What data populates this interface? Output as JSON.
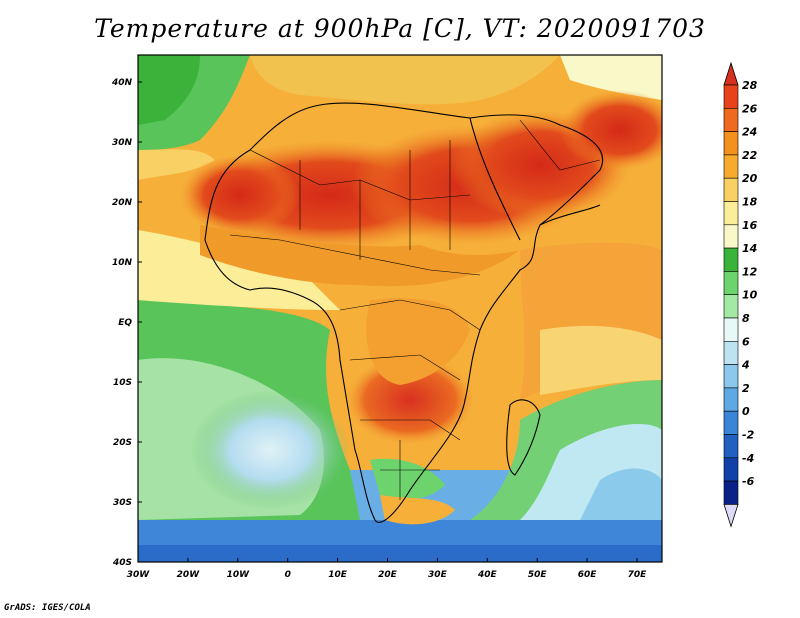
{
  "title": "Temperature at 900hPa [C], VT: 2020091703",
  "credit": "GrADS: IGES/COLA",
  "map": {
    "lat_labels": [
      "40N",
      "30N",
      "20N",
      "10N",
      "EQ",
      "10S",
      "20S",
      "30S",
      "40S"
    ],
    "lon_labels": [
      "30W",
      "20W",
      "10W",
      "0",
      "10E",
      "20E",
      "30E",
      "40E",
      "50E",
      "60E",
      "70E"
    ],
    "lat_range": [
      -40,
      43
    ],
    "lon_range": [
      -30,
      75
    ]
  },
  "colorbar": {
    "labels": [
      "28",
      "26",
      "24",
      "22",
      "20",
      "18",
      "16",
      "14",
      "12",
      "10",
      "8",
      "6",
      "4",
      "2",
      "0",
      "-2",
      "-4",
      "-6"
    ],
    "colors": [
      "#d7301f",
      "#e6421c",
      "#ef6a1e",
      "#f4901e",
      "#f6ab2e",
      "#f9d064",
      "#fcee99",
      "#f8f8c8",
      "#3bb33b",
      "#6dd46d",
      "#a3e8a3",
      "#e8f8f8",
      "#bde2f2",
      "#8cc8ec",
      "#5ea8e4",
      "#3b85d6",
      "#2060c0",
      "#1040a8",
      "#0a2288",
      "#dcdcf8"
    ]
  }
}
